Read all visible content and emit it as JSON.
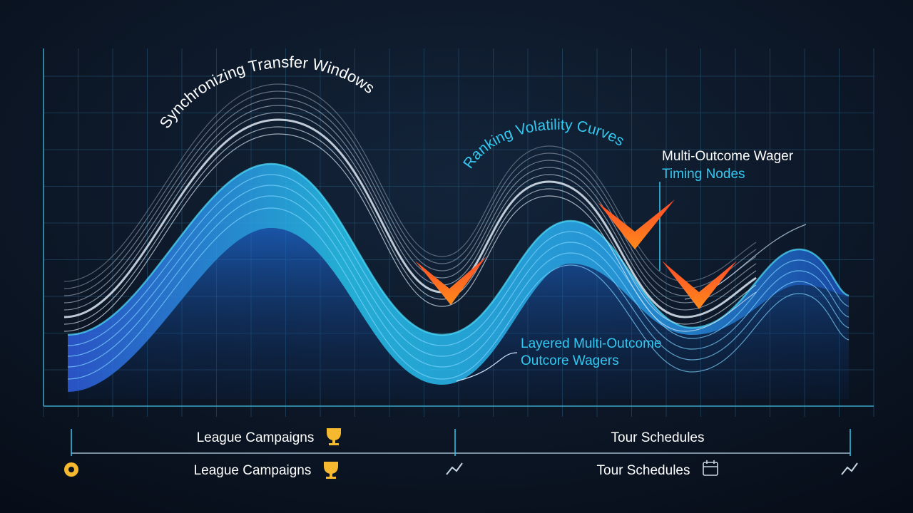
{
  "labels": {
    "transfer": "Synchronizing Transfer Windows",
    "ranking": "Ranking Volatility Curves",
    "wager_timing": [
      "Multi-Outcome Wager",
      "Timing Nodes"
    ],
    "layered": [
      "Layered Multi-Outcome",
      "Outcore Wagers"
    ]
  },
  "timeline": {
    "top": [
      "League Campaigns",
      "Tour Schedules"
    ],
    "bottom": [
      "League Campaigns",
      "Tour Schedules"
    ]
  }
}
